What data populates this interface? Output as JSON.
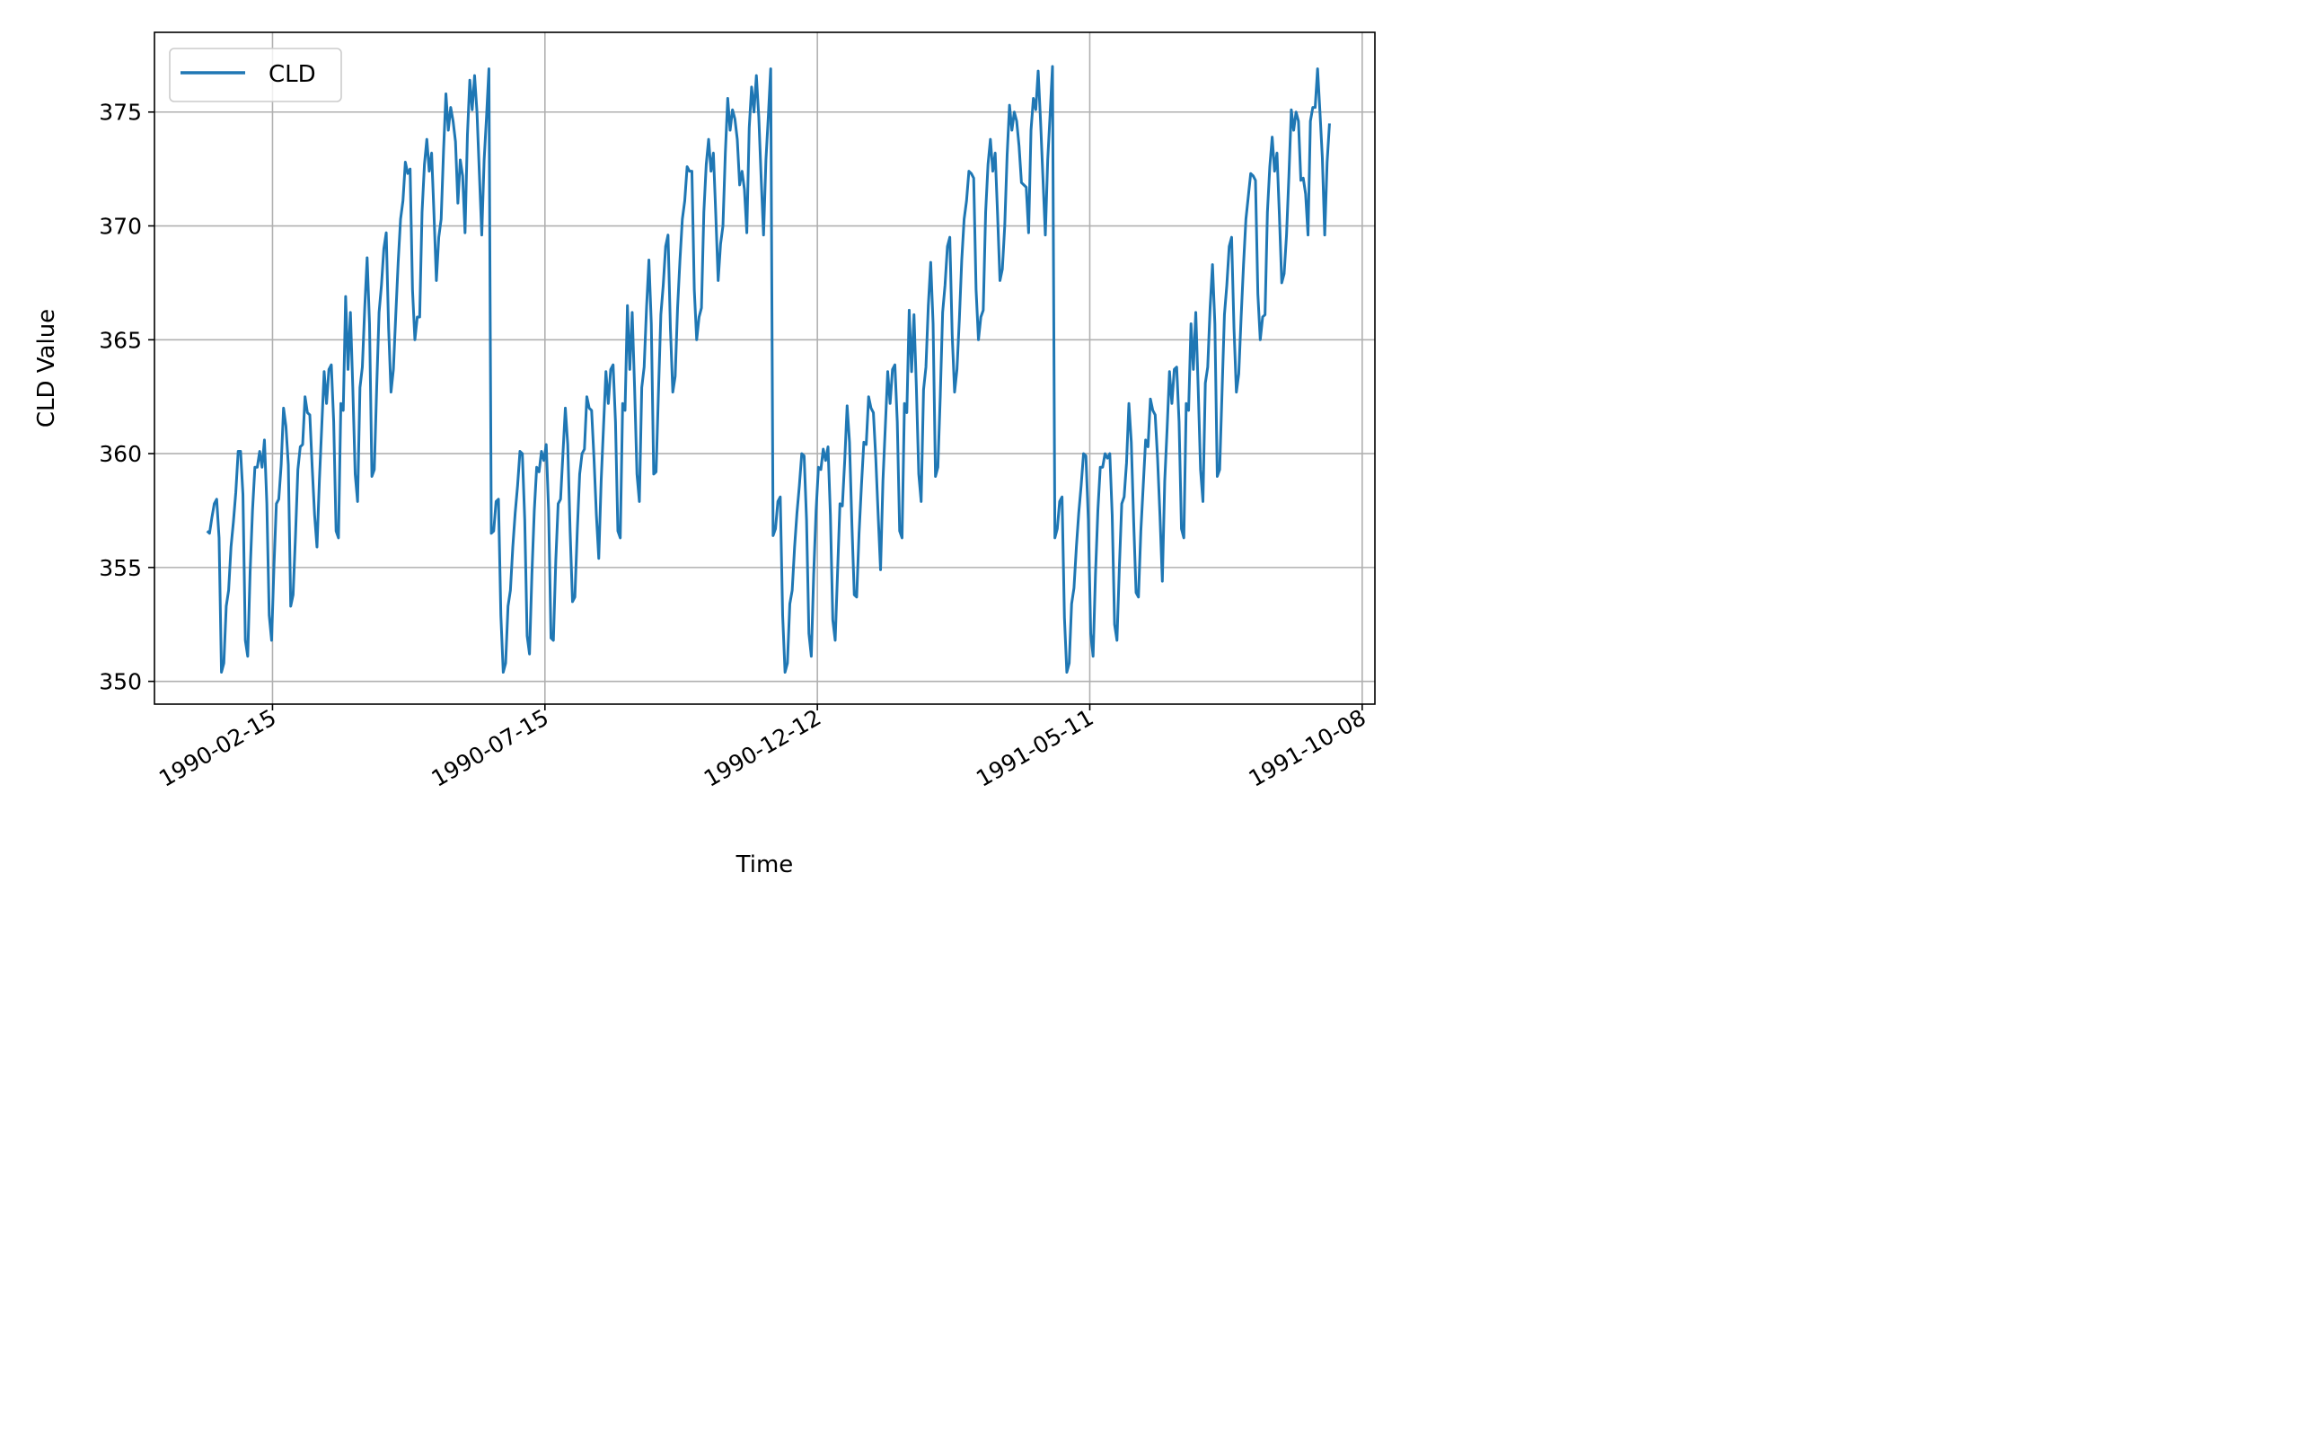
{
  "chart_data": {
    "type": "line",
    "title": "",
    "xlabel": "Time",
    "ylabel": "CLD Value",
    "x_start": "1990-01-10",
    "x_end": "1991-09-20",
    "xlim": [
      "1989-12-12",
      "1991-10-15"
    ],
    "ylim": [
      349,
      378.5
    ],
    "yticks": [
      350,
      355,
      360,
      365,
      370,
      375
    ],
    "xticks": [
      "1990-02-15",
      "1990-07-15",
      "1990-12-12",
      "1991-05-11",
      "1991-10-08"
    ],
    "grid": true,
    "legend": "upper left",
    "series": [
      {
        "name": "CLD",
        "color": "#1f77b4",
        "values": [
          356.6,
          356.5,
          357.2,
          357.8,
          358.0,
          356.3,
          350.4,
          350.8,
          353.3,
          354.0,
          355.9,
          357.0,
          358.3,
          360.1,
          360.1,
          358.2,
          351.8,
          351.1,
          354.8,
          357.5,
          359.4,
          359.4,
          360.1,
          359.4,
          360.6,
          357.8,
          352.9,
          351.8,
          355.1,
          357.8,
          358.0,
          359.5,
          362.0,
          361.2,
          359.5,
          353.3,
          353.8,
          356.4,
          359.3,
          360.3,
          360.4,
          362.5,
          361.8,
          361.7,
          359.4,
          357.3,
          355.9,
          358.8,
          361.2,
          363.6,
          362.2,
          363.7,
          363.9,
          361.4,
          356.6,
          356.3,
          362.2,
          361.9,
          366.9,
          363.7,
          366.2,
          362.9,
          359.1,
          357.9,
          362.9,
          363.8,
          366.4,
          368.6,
          365.7,
          359.0,
          359.3,
          362.9,
          366.2,
          367.4,
          369.0,
          369.7,
          365.5,
          362.7,
          363.7,
          366.1,
          368.4,
          370.3,
          371.1,
          372.8,
          372.3,
          372.5,
          367.2,
          365.0,
          366.0,
          366.0,
          370.6,
          372.7,
          373.8,
          372.4,
          373.2,
          370.5,
          367.6,
          369.5,
          370.3,
          373.3,
          375.8,
          374.2,
          375.2,
          374.6,
          373.7,
          371.0,
          372.9,
          372.2,
          369.7,
          374.0,
          376.4,
          375.1,
          376.6,
          375.0,
          372.3,
          369.6,
          372.9,
          374.8,
          376.9,
          356.5,
          356.6,
          357.9,
          358.0,
          352.9,
          350.4,
          350.8,
          353.3,
          354.0,
          355.9,
          357.4,
          358.6,
          360.1,
          360.0,
          357.1,
          352.0,
          351.2,
          354.7,
          357.5,
          359.4,
          359.2,
          360.1,
          359.7,
          360.4,
          357.5,
          351.9,
          351.8,
          355.3,
          357.8,
          358.0,
          360.0,
          362.0,
          360.4,
          356.6,
          353.5,
          353.7,
          356.6,
          359.1,
          360.0,
          360.2,
          362.5,
          362.0,
          361.9,
          359.8,
          357.3,
          355.4,
          358.8,
          361.2,
          363.6,
          362.2,
          363.7,
          363.9,
          361.4,
          356.6,
          356.3,
          362.2,
          361.9,
          366.5,
          363.7,
          366.2,
          362.9,
          359.1,
          357.9,
          362.9,
          363.8,
          366.4,
          368.5,
          365.7,
          359.1,
          359.2,
          362.7,
          366.1,
          367.4,
          369.1,
          369.6,
          365.5,
          362.7,
          363.4,
          366.4,
          368.5,
          370.3,
          371.1,
          372.6,
          372.4,
          372.4,
          367.2,
          365.0,
          366.0,
          366.4,
          370.6,
          372.7,
          373.8,
          372.4,
          373.2,
          370.5,
          367.6,
          369.2,
          370.0,
          373.2,
          375.6,
          374.2,
          375.1,
          374.7,
          373.8,
          371.8,
          372.4,
          371.6,
          369.7,
          374.3,
          376.1,
          375.0,
          376.6,
          374.8,
          372.1,
          369.6,
          372.9,
          374.8,
          376.9,
          356.4,
          356.7,
          357.9,
          358.1,
          352.9,
          350.4,
          350.8,
          353.4,
          354.0,
          355.9,
          357.4,
          358.6,
          360.0,
          359.9,
          357.1,
          352.1,
          351.1,
          354.7,
          357.5,
          359.4,
          359.3,
          360.2,
          359.7,
          360.3,
          357.3,
          352.7,
          351.8,
          354.8,
          357.8,
          357.7,
          359.7,
          362.1,
          360.5,
          356.9,
          353.8,
          353.7,
          356.5,
          358.6,
          360.5,
          360.4,
          362.5,
          362.0,
          361.8,
          359.8,
          357.3,
          354.9,
          358.8,
          361.2,
          363.6,
          362.2,
          363.7,
          363.9,
          361.4,
          356.6,
          356.3,
          362.2,
          361.8,
          366.3,
          363.6,
          366.1,
          362.9,
          359.1,
          357.9,
          362.8,
          363.8,
          366.5,
          368.4,
          365.7,
          359.0,
          359.4,
          362.5,
          366.2,
          367.4,
          369.1,
          369.5,
          365.2,
          362.7,
          363.7,
          365.9,
          368.5,
          370.3,
          371.1,
          372.4,
          372.3,
          372.1,
          367.2,
          365.0,
          366.0,
          366.3,
          370.6,
          372.7,
          373.8,
          372.4,
          373.2,
          370.5,
          367.6,
          368.1,
          370.0,
          373.1,
          375.3,
          374.2,
          375.0,
          374.6,
          373.5,
          371.9,
          371.8,
          371.7,
          369.7,
          374.2,
          375.6,
          375.1,
          376.8,
          374.6,
          372.1,
          369.6,
          372.9,
          374.9,
          377.0,
          356.3,
          356.7,
          357.9,
          358.1,
          352.8,
          350.4,
          350.8,
          353.4,
          354.1,
          355.9,
          357.4,
          358.6,
          360.0,
          359.9,
          357.1,
          352.1,
          351.1,
          354.7,
          357.5,
          359.4,
          359.4,
          360.0,
          359.8,
          360.0,
          357.3,
          352.5,
          351.8,
          355.0,
          357.8,
          358.1,
          359.6,
          362.2,
          360.5,
          357.0,
          353.9,
          353.7,
          356.6,
          358.6,
          360.6,
          360.3,
          362.4,
          361.9,
          361.7,
          359.8,
          357.3,
          354.4,
          358.8,
          361.1,
          363.6,
          362.2,
          363.7,
          363.8,
          361.4,
          356.7,
          356.3,
          362.2,
          361.9,
          365.7,
          363.7,
          366.2,
          362.9,
          359.3,
          357.9,
          363.1,
          363.8,
          366.4,
          368.3,
          365.7,
          359.0,
          359.3,
          362.7,
          366.1,
          367.4,
          369.1,
          369.5,
          365.5,
          362.7,
          363.5,
          366.0,
          368.3,
          370.3,
          371.3,
          372.3,
          372.2,
          372.0,
          367.0,
          365.0,
          366.0,
          366.1,
          370.6,
          372.6,
          373.9,
          372.4,
          373.2,
          370.5,
          367.5,
          367.9,
          369.6,
          372.2,
          375.1,
          374.2,
          375.0,
          374.6,
          372.0,
          372.1,
          371.4,
          369.6,
          374.6,
          375.2,
          375.2,
          376.9,
          375.0,
          373.0,
          369.6,
          372.8,
          374.5
        ]
      }
    ]
  }
}
